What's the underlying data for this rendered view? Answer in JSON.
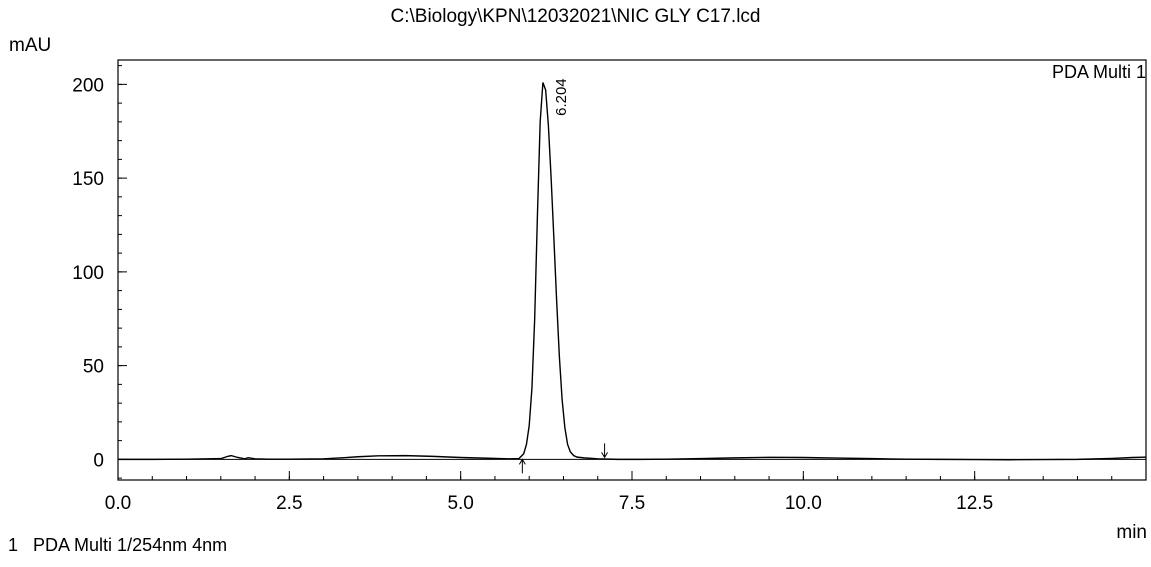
{
  "chart_data": {
    "type": "line",
    "title": "C:\\Biology\\KPN\\12032021\\NIC GLY C17.lcd",
    "ylabel": "mAU",
    "xlabel": "min",
    "channel_label": "PDA Multi 1",
    "peak_label": "6.204",
    "footer_index": "1",
    "footer_text": "PDA Multi 1/254nm 4nm",
    "xlim": [
      0.0,
      15.0
    ],
    "ylim": [
      -11,
      213
    ],
    "x_ticks": [
      "0.0",
      "2.5",
      "5.0",
      "7.5",
      "10.0",
      "12.5"
    ],
    "y_ticks": [
      "0",
      "50",
      "100",
      "150",
      "200"
    ],
    "peak_start_marker": 5.9,
    "peak_end_marker": 7.1,
    "series": [
      {
        "x": [
          0.0,
          0.5,
          1.0,
          1.5,
          1.6,
          1.65,
          1.75,
          1.85,
          1.9,
          2.0,
          2.2,
          2.5,
          3.0,
          3.3,
          3.5,
          3.8,
          4.2,
          4.6,
          5.0,
          5.4,
          5.7,
          5.85,
          5.92,
          5.96,
          6.0,
          6.04,
          6.08,
          6.12,
          6.16,
          6.2,
          6.24,
          6.28,
          6.32,
          6.36,
          6.4,
          6.44,
          6.48,
          6.52,
          6.56,
          6.6,
          6.65,
          6.7,
          6.8,
          7.0,
          7.3,
          7.6,
          8.0,
          8.5,
          9.0,
          9.5,
          10.0,
          10.5,
          11.0,
          11.5,
          12.0,
          12.5,
          13.0,
          13.5,
          14.0,
          14.5,
          14.8,
          15.0
        ],
        "y": [
          0.0,
          0.0,
          0.1,
          0.4,
          1.6,
          2.0,
          1.0,
          0.3,
          0.9,
          0.3,
          0.1,
          0.1,
          0.3,
          0.9,
          1.4,
          1.9,
          2.0,
          1.6,
          1.0,
          0.6,
          0.3,
          0.4,
          3.0,
          8.0,
          18.0,
          38.0,
          75.0,
          130.0,
          180.0,
          201.0,
          197.0,
          178.0,
          150.0,
          118.0,
          85.0,
          55.0,
          32.0,
          17.0,
          8.0,
          4.0,
          2.0,
          1.2,
          0.8,
          0.3,
          0.0,
          0.0,
          0.1,
          0.4,
          0.8,
          1.1,
          1.0,
          0.7,
          0.4,
          0.1,
          0.0,
          -0.1,
          -0.2,
          -0.1,
          0.0,
          0.5,
          1.0,
          1.2
        ]
      }
    ]
  }
}
